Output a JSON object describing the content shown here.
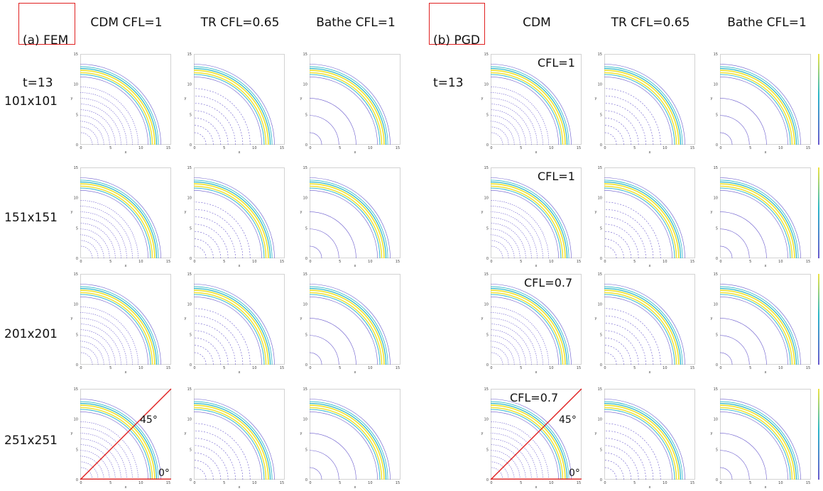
{
  "left_tag": {
    "line1": "(a) FEM",
    "line2": "t=13"
  },
  "right_tag": {
    "line1": "(b) PGD",
    "line2": "t=13"
  },
  "left_columns": [
    "CDM CFL=1",
    "TR CFL=0.65",
    "Bathe CFL=1"
  ],
  "right_columns": [
    "CDM",
    "TR CFL=0.65",
    "Bathe CFL=1"
  ],
  "rows": [
    "101x101",
    "151x151",
    "201x201",
    "251x251"
  ],
  "cdm_pgd_cfl": [
    "CFL=1",
    "CFL=1",
    "CFL=0.7",
    "CFL=0.7"
  ],
  "angles": {
    "a45": "45°",
    "a0": "0°"
  },
  "axis": {
    "ticks": [
      "0",
      "5",
      "10",
      "15"
    ],
    "xlabel": "x",
    "ylabel": "y"
  },
  "colors": {
    "accent": "#e02020",
    "contour_low": "#6a5acd",
    "contour_mid": "#2ab7c9",
    "contour_high": "#f0e442"
  }
}
